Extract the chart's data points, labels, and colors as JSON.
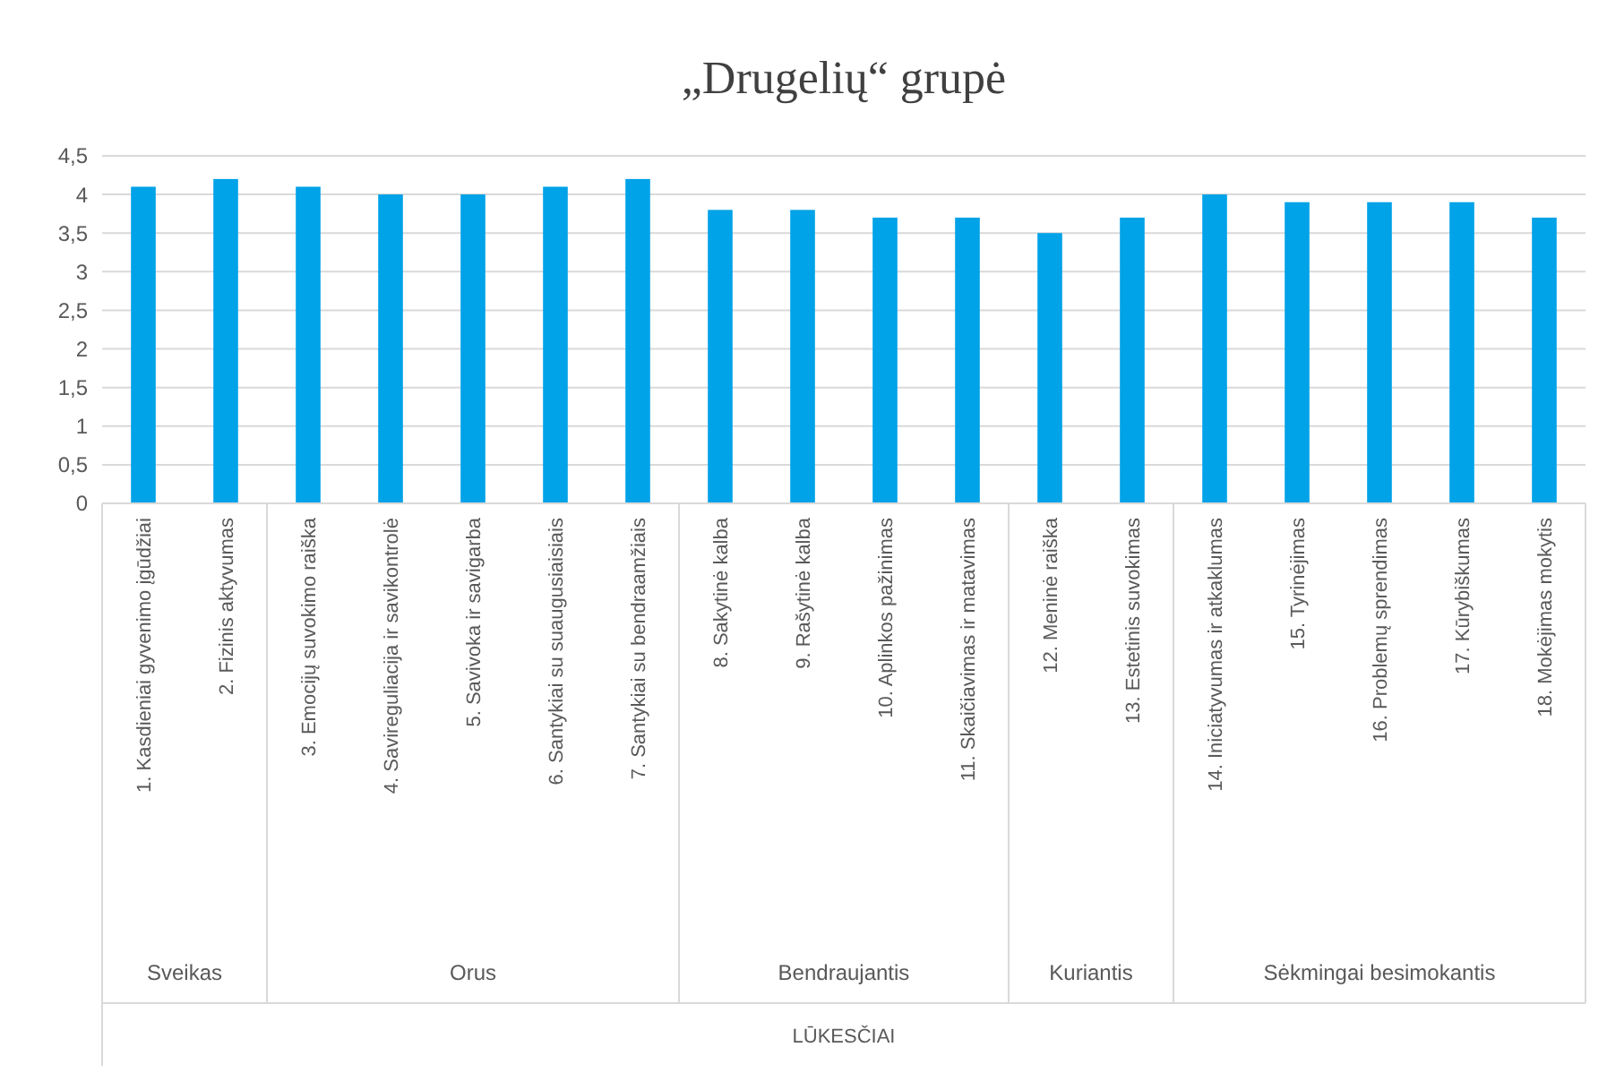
{
  "chart_data": {
    "type": "bar",
    "title": "„Drugelių“ grupė",
    "categories": [
      "1. Kasdieniai gyvenimo įgūdžiai",
      "2. Fizinis aktyvumas",
      "3. Emocijų suvokimo raiška",
      "4. Savireguliacija ir savikontrolė",
      "5. Savivoka ir savigarba",
      "6. Santykiai su suaugusiaisiais",
      "7. Santykiai su bendraamžiais",
      "8. Sakytinė kalba",
      "9. Rašytinė kalba",
      "10. Aplinkos pažinimas",
      "11. Skaičiavimas ir matavimas",
      "12. Meninė raiška",
      "13. Estetinis suvokimas",
      "14. Iniciatyvumas ir atkaklumas",
      "15. Tyrinėjimas",
      "16. Problemų sprendimas",
      "17. Kūrybiškumas",
      "18. Mokėjimas mokytis"
    ],
    "values": [
      4.1,
      4.2,
      4.1,
      4.0,
      4.0,
      4.1,
      4.2,
      3.8,
      3.8,
      3.7,
      3.7,
      3.5,
      3.7,
      4.0,
      3.9,
      3.9,
      3.9,
      3.7
    ],
    "color": "#00a2e8",
    "ylim": [
      0,
      4.5
    ],
    "yticks": [
      {
        "value": 0,
        "label": "0"
      },
      {
        "value": 0.5,
        "label": "0,5"
      },
      {
        "value": 1,
        "label": "1"
      },
      {
        "value": 1.5,
        "label": "1,5"
      },
      {
        "value": 2,
        "label": "2"
      },
      {
        "value": 2.5,
        "label": "2,5"
      },
      {
        "value": 3,
        "label": "3"
      },
      {
        "value": 3.5,
        "label": "3,5"
      },
      {
        "value": 4,
        "label": "4"
      },
      {
        "value": 4.5,
        "label": "4,5"
      }
    ],
    "grid": "y",
    "annotations": [
      "Sveikas",
      "Orus",
      "Bendraujantis",
      "Kuriantis",
      "Sėkmingai besimokantis",
      "LŪKESČIAI"
    ]
  }
}
